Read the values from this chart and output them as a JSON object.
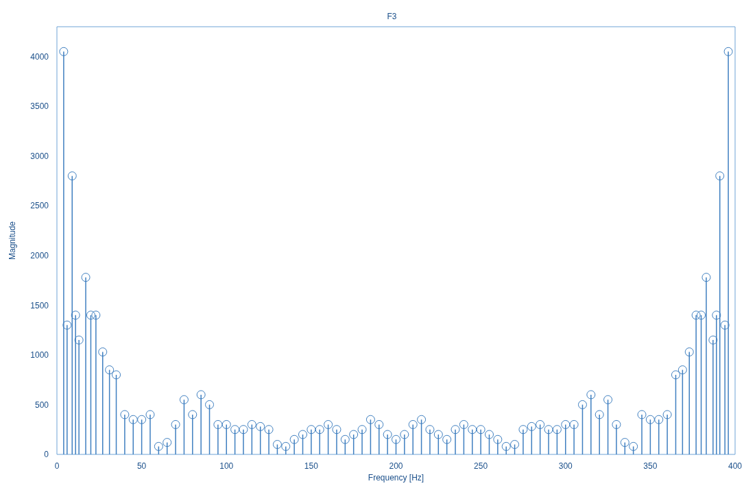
{
  "chart_data": {
    "type": "lollipop",
    "title": "F3",
    "xlabel": "Frequency [Hz]",
    "ylabel": "Magnitude",
    "color": "#3f7fc0",
    "marker": "circle",
    "grid": false,
    "x": [
      4,
      6,
      9,
      11,
      13,
      17,
      20,
      23,
      27,
      31,
      35,
      40,
      45,
      50,
      55,
      60,
      65,
      70,
      75,
      80,
      85,
      90,
      95,
      100,
      105,
      110,
      115,
      120,
      125,
      130,
      135,
      140,
      145,
      150,
      155,
      160,
      165,
      170,
      175,
      180,
      185,
      190,
      195,
      200,
      205,
      210,
      215,
      220,
      225,
      230,
      235,
      240,
      245,
      250,
      255,
      260,
      265,
      270,
      275,
      280,
      285,
      290,
      295,
      300,
      305,
      310,
      315,
      320,
      325,
      330,
      335,
      340,
      345,
      350,
      355,
      360,
      365,
      369,
      373,
      377,
      380,
      383,
      387,
      389,
      391,
      394,
      396
    ],
    "values": [
      4050,
      1300,
      2800,
      1400,
      1150,
      1780,
      1400,
      1400,
      1030,
      850,
      800,
      400,
      350,
      350,
      400,
      80,
      120,
      300,
      550,
      400,
      600,
      500,
      300,
      300,
      250,
      250,
      300,
      280,
      250,
      100,
      80,
      150,
      200,
      250,
      250,
      300,
      250,
      150,
      200,
      250,
      350,
      300,
      200,
      150,
      200,
      300,
      350,
      250,
      200,
      150,
      250,
      300,
      250,
      250,
      200,
      150,
      80,
      100,
      250,
      280,
      300,
      250,
      250,
      300,
      300,
      500,
      600,
      400,
      550,
      300,
      120,
      80,
      400,
      350,
      350,
      400,
      800,
      850,
      1030,
      1400,
      1400,
      1780,
      1150,
      1400,
      2800,
      1300,
      4050
    ],
    "xlim": [
      0,
      400
    ],
    "xticks": [
      0,
      50,
      100,
      150,
      200,
      250,
      300,
      350,
      400
    ],
    "ylim": [
      0,
      4300
    ],
    "yticks": [
      0,
      500,
      1000,
      1500,
      2000,
      2500,
      3000,
      3500,
      4000
    ]
  }
}
